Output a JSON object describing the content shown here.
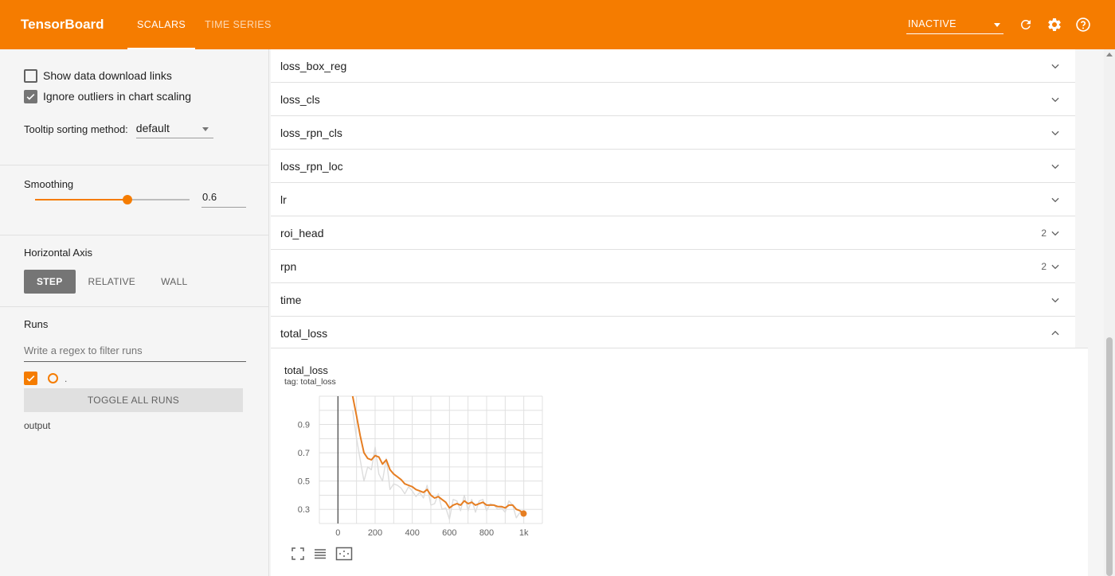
{
  "header": {
    "brand": "TensorBoard",
    "tabs": [
      {
        "label": "SCALARS",
        "active": true
      },
      {
        "label": "TIME SERIES",
        "active": false
      }
    ],
    "run_selector": "INACTIVE",
    "icons": [
      "refresh-icon",
      "settings-icon",
      "help-icon"
    ]
  },
  "sidebar": {
    "show_download_links": {
      "label": "Show data download links",
      "checked": false
    },
    "ignore_outliers": {
      "label": "Ignore outliers in chart scaling",
      "checked": true
    },
    "tooltip_sorting": {
      "label": "Tooltip sorting method:",
      "value": "default"
    },
    "smoothing": {
      "label": "Smoothing",
      "value": "0.6",
      "fraction": 0.6
    },
    "horizontal_axis": {
      "label": "Horizontal Axis",
      "options": [
        "STEP",
        "RELATIVE",
        "WALL"
      ],
      "selected": "STEP"
    },
    "runs": {
      "label": "Runs",
      "filter_placeholder": "Write a regex to filter runs",
      "run_dot_label": ".",
      "toggle_all": "TOGGLE ALL RUNS",
      "output_label": "output"
    }
  },
  "panes": [
    {
      "name": "loss_box_reg",
      "count": "",
      "expanded": false
    },
    {
      "name": "loss_cls",
      "count": "",
      "expanded": false
    },
    {
      "name": "loss_rpn_cls",
      "count": "",
      "expanded": false
    },
    {
      "name": "loss_rpn_loc",
      "count": "",
      "expanded": false
    },
    {
      "name": "lr",
      "count": "",
      "expanded": false
    },
    {
      "name": "roi_head",
      "count": "2",
      "expanded": false
    },
    {
      "name": "rpn",
      "count": "2",
      "expanded": false
    },
    {
      "name": "time",
      "count": "",
      "expanded": false
    },
    {
      "name": "total_loss",
      "count": "",
      "expanded": true
    }
  ],
  "chart_card": {
    "title": "total_loss",
    "subtitle": "tag: total_loss"
  },
  "chart_data": {
    "type": "line",
    "title": "total_loss",
    "xlabel": "",
    "ylabel": "",
    "x_ticks": [
      "0",
      "200",
      "400",
      "600",
      "800",
      "1k"
    ],
    "y_ticks": [
      "0.3",
      "0.5",
      "0.7",
      "0.9"
    ],
    "xlim": [
      -100,
      1100
    ],
    "ylim": [
      0.2,
      1.1
    ],
    "grid": true,
    "series": [
      {
        "name": "",
        "color": "#e67e22",
        "smoothed": true,
        "x": [
          79,
          100,
          120,
          140,
          160,
          180,
          200,
          220,
          240,
          260,
          280,
          300,
          320,
          340,
          360,
          380,
          400,
          420,
          440,
          460,
          480,
          500,
          520,
          540,
          560,
          580,
          600,
          620,
          640,
          660,
          680,
          700,
          720,
          740,
          760,
          780,
          800,
          820,
          840,
          860,
          880,
          900,
          920,
          940,
          960,
          980,
          999
        ],
        "y": [
          1.1,
          0.96,
          0.82,
          0.7,
          0.66,
          0.65,
          0.68,
          0.67,
          0.62,
          0.65,
          0.58,
          0.55,
          0.53,
          0.51,
          0.48,
          0.47,
          0.46,
          0.44,
          0.43,
          0.42,
          0.44,
          0.4,
          0.38,
          0.39,
          0.37,
          0.35,
          0.31,
          0.33,
          0.34,
          0.33,
          0.36,
          0.34,
          0.35,
          0.33,
          0.34,
          0.35,
          0.33,
          0.33,
          0.33,
          0.32,
          0.32,
          0.31,
          0.33,
          0.33,
          0.3,
          0.29,
          0.27
        ]
      },
      {
        "name": "",
        "color": "#dddddd",
        "smoothed": false,
        "x": [
          79,
          100,
          120,
          140,
          160,
          180,
          200,
          220,
          240,
          260,
          280,
          300,
          320,
          340,
          360,
          380,
          400,
          420,
          440,
          460,
          480,
          500,
          520,
          540,
          560,
          580,
          600,
          620,
          640,
          660,
          680,
          700,
          720,
          740,
          760,
          780,
          800,
          820,
          840,
          860,
          880,
          900,
          920,
          940,
          960,
          980,
          999
        ],
        "y": [
          1.0,
          0.8,
          0.65,
          0.5,
          0.6,
          0.58,
          0.74,
          0.55,
          0.5,
          0.66,
          0.44,
          0.48,
          0.47,
          0.45,
          0.41,
          0.46,
          0.43,
          0.39,
          0.42,
          0.38,
          0.47,
          0.33,
          0.34,
          0.41,
          0.3,
          0.31,
          0.23,
          0.37,
          0.36,
          0.29,
          0.4,
          0.29,
          0.37,
          0.28,
          0.36,
          0.37,
          0.29,
          0.34,
          0.33,
          0.3,
          0.31,
          0.28,
          0.36,
          0.33,
          0.24,
          0.28,
          0.26
        ]
      }
    ]
  }
}
